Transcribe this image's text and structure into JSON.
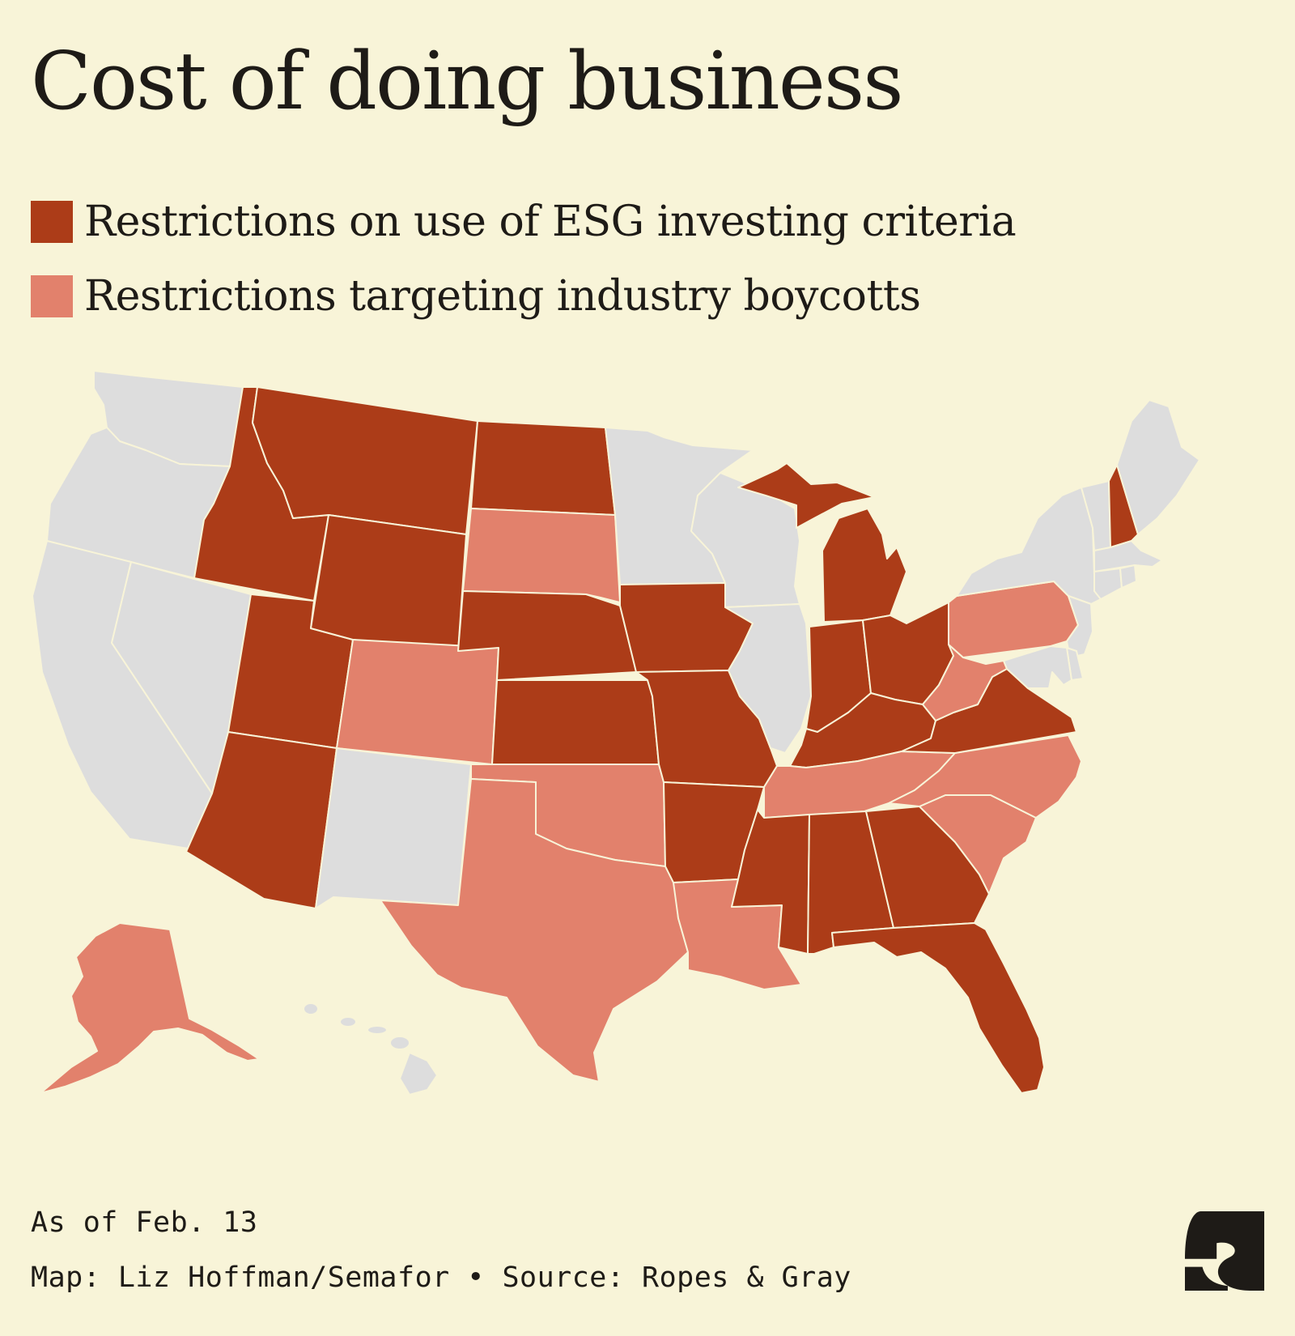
{
  "title": "Cost of doing business",
  "legend": [
    {
      "label": "Restrictions on use of ESG investing criteria",
      "color": "#ac3c18",
      "category": "esg"
    },
    {
      "label": "Restrictions targeting industry boycotts",
      "color": "#e2816c",
      "category": "boycott"
    }
  ],
  "colors": {
    "background": "#f8f4d8",
    "none": "#dddddd",
    "border": "#f8f4d8",
    "logo": "#1e1b17"
  },
  "states": {
    "esg": [
      "ID",
      "MT",
      "WY",
      "UT",
      "AZ",
      "ND",
      "NE",
      "KS",
      "IA",
      "MO",
      "AR",
      "MI",
      "IN",
      "OH",
      "KY",
      "VA",
      "MS",
      "AL",
      "GA",
      "FL",
      "NH"
    ],
    "boycott": [
      "SD",
      "CO",
      "OK",
      "TX",
      "LA",
      "TN",
      "NC",
      "SC",
      "WV",
      "PA",
      "AK"
    ],
    "none": [
      "WA",
      "OR",
      "CA",
      "NV",
      "NM",
      "MN",
      "WI",
      "IL",
      "NY",
      "VT",
      "ME",
      "MA",
      "CT",
      "RI",
      "NJ",
      "MD",
      "DE",
      "HI"
    ]
  },
  "footer": {
    "as_of": "As of Feb. 13",
    "credit": "Map: Liz Hoffman/Semafor • Source: Ropes & Gray"
  },
  "logo_icon": "semafor-s-logo"
}
